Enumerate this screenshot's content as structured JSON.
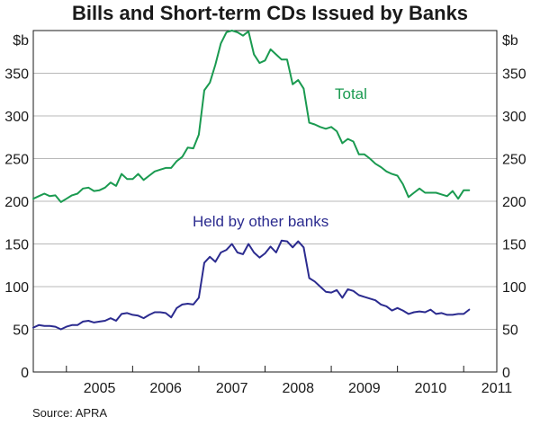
{
  "chart_data": {
    "type": "line",
    "title": "Bills and Short-term CDs Issued by Banks",
    "ylabel_left": "$b",
    "ylabel_right": "$b",
    "ylim": [
      0,
      400
    ],
    "yticks": [
      "0",
      "50",
      "100",
      "150",
      "200",
      "250",
      "300",
      "350"
    ],
    "xlim": [
      2004.5,
      2011.5
    ],
    "xticks": [
      "2005",
      "2006",
      "2007",
      "2008",
      "2009",
      "2010",
      "2011"
    ],
    "grid": true,
    "source": "Source: APRA",
    "series": [
      {
        "name": "Total",
        "color": "#1a9a50",
        "x": [
          2004.5,
          2004.583,
          2004.667,
          2004.75,
          2004.833,
          2004.917,
          2005.0,
          2005.083,
          2005.167,
          2005.25,
          2005.333,
          2005.417,
          2005.5,
          2005.583,
          2005.667,
          2005.75,
          2005.833,
          2005.917,
          2006.0,
          2006.083,
          2006.167,
          2006.25,
          2006.333,
          2006.417,
          2006.5,
          2006.583,
          2006.667,
          2006.75,
          2006.833,
          2006.917,
          2007.0,
          2007.083,
          2007.167,
          2007.25,
          2007.333,
          2007.417,
          2007.5,
          2007.583,
          2007.667,
          2007.75,
          2007.833,
          2007.917,
          2008.0,
          2008.083,
          2008.167,
          2008.25,
          2008.333,
          2008.417,
          2008.5,
          2008.583,
          2008.667,
          2008.75,
          2008.833,
          2008.917,
          2009.0,
          2009.083,
          2009.167,
          2009.25,
          2009.333,
          2009.417,
          2009.5,
          2009.583,
          2009.667,
          2009.75,
          2009.833,
          2009.917,
          2010.0,
          2010.083,
          2010.167,
          2010.25,
          2010.333,
          2010.417,
          2010.5,
          2010.583,
          2010.667,
          2010.75,
          2010.833,
          2010.917,
          2011.0,
          2011.083
        ],
        "values": [
          203,
          206,
          209,
          206,
          207,
          199,
          203,
          207,
          209,
          215,
          216,
          212,
          213,
          216,
          222,
          218,
          232,
          226,
          226,
          232,
          225,
          230,
          235,
          237,
          239,
          239,
          247,
          252,
          263,
          262,
          278,
          330,
          339,
          360,
          385,
          398,
          400,
          398,
          394,
          399,
          372,
          362,
          365,
          378,
          372,
          366,
          366,
          337,
          342,
          332,
          292,
          290,
          287,
          285,
          287,
          282,
          268,
          273,
          270,
          255,
          255,
          250,
          244,
          240,
          235,
          232,
          230,
          220,
          205,
          210,
          215,
          210,
          210,
          210,
          208,
          206,
          212,
          203,
          213,
          213
        ],
        "label_text": "Total"
      },
      {
        "name": "Held by other banks",
        "color": "#2b2b8f",
        "x": [
          2004.5,
          2004.583,
          2004.667,
          2004.75,
          2004.833,
          2004.917,
          2005.0,
          2005.083,
          2005.167,
          2005.25,
          2005.333,
          2005.417,
          2005.5,
          2005.583,
          2005.667,
          2005.75,
          2005.833,
          2005.917,
          2006.0,
          2006.083,
          2006.167,
          2006.25,
          2006.333,
          2006.417,
          2006.5,
          2006.583,
          2006.667,
          2006.75,
          2006.833,
          2006.917,
          2007.0,
          2007.083,
          2007.167,
          2007.25,
          2007.333,
          2007.417,
          2007.5,
          2007.583,
          2007.667,
          2007.75,
          2007.833,
          2007.917,
          2008.0,
          2008.083,
          2008.167,
          2008.25,
          2008.333,
          2008.417,
          2008.5,
          2008.583,
          2008.667,
          2008.75,
          2008.833,
          2008.917,
          2009.0,
          2009.083,
          2009.167,
          2009.25,
          2009.333,
          2009.417,
          2009.5,
          2009.583,
          2009.667,
          2009.75,
          2009.833,
          2009.917,
          2010.0,
          2010.083,
          2010.167,
          2010.25,
          2010.333,
          2010.417,
          2010.5,
          2010.583,
          2010.667,
          2010.75,
          2010.833,
          2010.917,
          2011.0,
          2011.083
        ],
        "values": [
          52,
          55,
          54,
          54,
          53,
          50,
          53,
          55,
          55,
          59,
          60,
          58,
          59,
          60,
          63,
          60,
          68,
          69,
          67,
          66,
          63,
          67,
          70,
          70,
          69,
          64,
          75,
          79,
          80,
          79,
          87,
          128,
          135,
          129,
          140,
          143,
          150,
          140,
          138,
          150,
          140,
          134,
          139,
          147,
          140,
          154,
          153,
          146,
          153,
          146,
          110,
          106,
          100,
          94,
          93,
          96,
          87,
          97,
          95,
          90,
          88,
          86,
          84,
          79,
          77,
          72,
          75,
          72,
          68,
          70,
          71,
          70,
          73,
          68,
          69,
          67,
          67,
          68,
          68,
          73
        ],
        "label_text": "Held by other banks"
      }
    ]
  }
}
